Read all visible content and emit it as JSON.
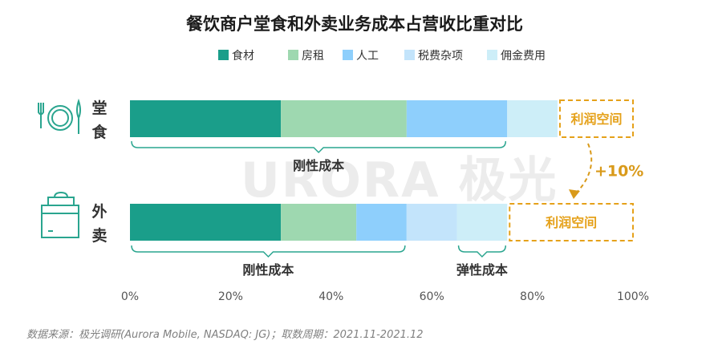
{
  "chart_data": {
    "type": "bar",
    "orientation": "horizontal",
    "stacked": true,
    "title": "餐饮商户堂食和外卖业务成本占营收比重对比",
    "categories": [
      "堂食",
      "外卖"
    ],
    "series": [
      {
        "name": "食材",
        "values": [
          30,
          30
        ],
        "color": "#1a9e8a"
      },
      {
        "name": "房租",
        "values": [
          25,
          15
        ],
        "color": "#9ed8b0"
      },
      {
        "name": "人工",
        "values": [
          20,
          10
        ],
        "color": "#8ecffc"
      },
      {
        "name": "税费杂项",
        "values": [
          0,
          10
        ],
        "color": "#c3e4fb"
      },
      {
        "name": "佣金费用",
        "values": [
          10,
          10
        ],
        "color": "#cdeef8"
      }
    ],
    "xlim": [
      0,
      100
    ],
    "x_ticks": [
      "0%",
      "20%",
      "40%",
      "60%",
      "80%",
      "100%"
    ],
    "legend_position": "top",
    "profit_label": "利润空间",
    "profit_ranges": [
      [
        85,
        100
      ],
      [
        75,
        100
      ]
    ],
    "profit_change": "+10%",
    "brace_annotations": [
      {
        "label": "刚性成本",
        "category": "堂食",
        "range": [
          0,
          75
        ]
      },
      {
        "label": "刚性成本",
        "category": "外卖",
        "range": [
          0,
          55
        ]
      },
      {
        "label": "弹性成本",
        "category": "外卖",
        "range": [
          65,
          75
        ]
      }
    ],
    "icons": [
      "plate-fork-knife-icon",
      "takeout-box-icon"
    ],
    "watermark": "URORA 极光",
    "source": "数据来源：极光调研(Aurora Mobile, NASDAQ: JG)；取数周期：2021.11-2021.12",
    "grid": false
  }
}
